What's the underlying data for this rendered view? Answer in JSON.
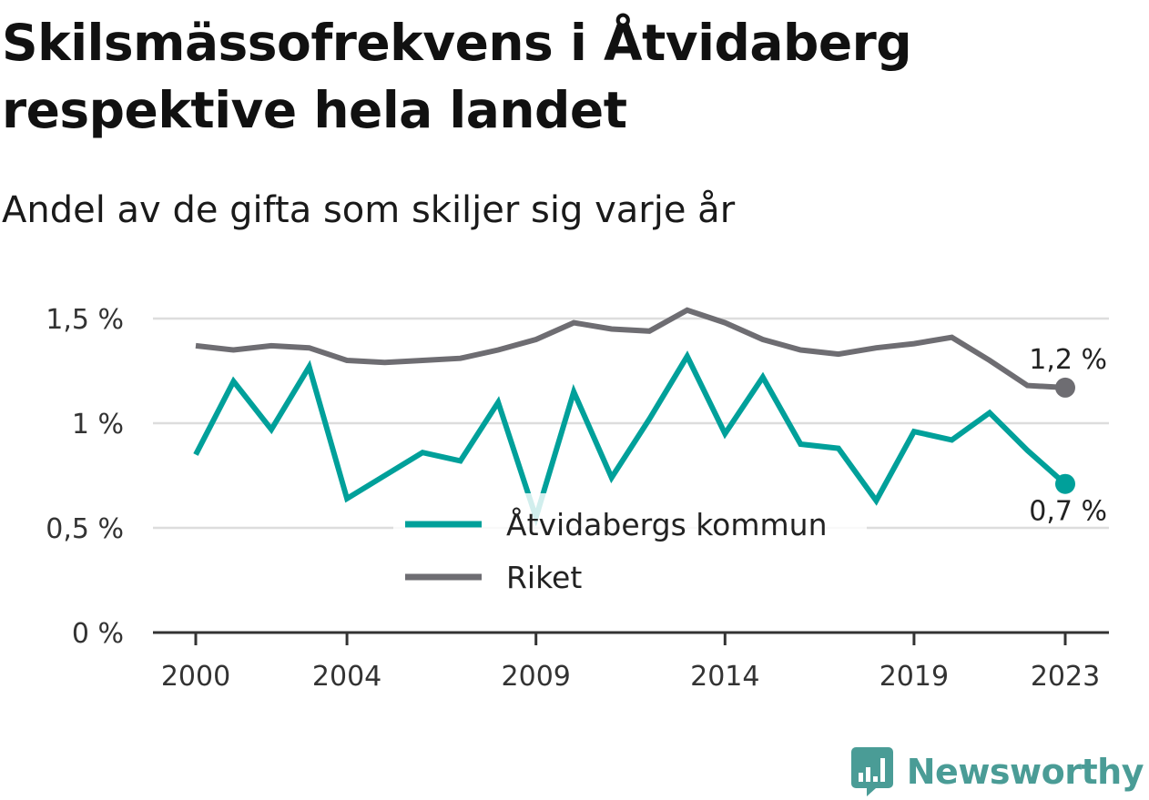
{
  "title": "Skilsmässofrekvens i Åtvidaberg respektive hela landet",
  "subtitle": "Andel av de gifta som skiljer sig varje år",
  "brand": {
    "name": "Newsworthy",
    "color": "#4a9c96",
    "icon": "bar-chart-speech-bubble-icon"
  },
  "chart_data": {
    "type": "line",
    "x": [
      2000,
      2001,
      2002,
      2003,
      2004,
      2005,
      2006,
      2007,
      2008,
      2009,
      2010,
      2011,
      2012,
      2013,
      2014,
      2015,
      2016,
      2017,
      2018,
      2019,
      2020,
      2021,
      2022,
      2023
    ],
    "xticks": [
      2000,
      2004,
      2009,
      2014,
      2019,
      2023
    ],
    "xtick_labels": [
      "2000",
      "2004",
      "2009",
      "2014",
      "2019",
      "2023"
    ],
    "ylim": [
      0,
      1.5
    ],
    "yticks": [
      0,
      0.5,
      1,
      1.5
    ],
    "ytick_labels": [
      "0 %",
      "0,5 %",
      "1 %",
      "1,5 %"
    ],
    "grid": true,
    "legend_position": "center-bottom",
    "series": [
      {
        "name": "Åtvidabergs kommun",
        "color": "#00a09a",
        "values": [
          0.85,
          1.2,
          0.97,
          1.27,
          0.64,
          0.75,
          0.86,
          0.82,
          1.1,
          0.55,
          1.15,
          0.74,
          1.02,
          1.32,
          0.95,
          1.22,
          0.9,
          0.88,
          0.63,
          0.96,
          0.92,
          1.05,
          0.87,
          0.71
        ],
        "end_label": "0,7 %"
      },
      {
        "name": "Riket",
        "color": "#6e6d72",
        "values": [
          1.37,
          1.35,
          1.37,
          1.36,
          1.3,
          1.29,
          1.3,
          1.31,
          1.35,
          1.4,
          1.48,
          1.45,
          1.44,
          1.54,
          1.48,
          1.4,
          1.35,
          1.33,
          1.36,
          1.38,
          1.41,
          1.3,
          1.18,
          1.17
        ],
        "end_label": "1,2 %"
      }
    ]
  }
}
